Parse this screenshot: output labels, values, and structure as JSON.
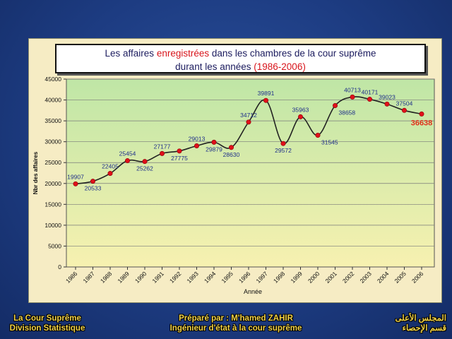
{
  "chart_data": {
    "type": "line",
    "title_part1": "Les affaires ",
    "title_highlight": "enregistrées",
    "title_part2": " dans les chambres de la cour suprême",
    "title_line2": "durant les années ",
    "title_years": "(1986-2006)",
    "xlabel": "Année",
    "ylabel": "Nbr des affaires",
    "ylim": [
      0,
      45000
    ],
    "yticks": [
      0,
      5000,
      10000,
      15000,
      20000,
      25000,
      30000,
      35000,
      40000,
      45000
    ],
    "categories": [
      "1986",
      "1987",
      "1988",
      "1989",
      "1990",
      "1991",
      "1992",
      "1993",
      "1994",
      "1995",
      "1996",
      "1997",
      "1998",
      "1999",
      "2000",
      "2001",
      "2002",
      "2003",
      "2004",
      "2005",
      "2006"
    ],
    "values": [
      19907,
      20533,
      22405,
      25454,
      25262,
      27177,
      27775,
      29013,
      29879,
      28630,
      34712,
      39891,
      29572,
      35963,
      31545,
      38658,
      40713,
      40171,
      39023,
      37504,
      36638
    ],
    "label_positions": [
      "above",
      "below",
      "above",
      "above",
      "below",
      "above",
      "below",
      "above",
      "below",
      "below",
      "above",
      "above",
      "below",
      "above",
      "right",
      "right",
      "above",
      "above",
      "above",
      "above",
      "below"
    ],
    "highlight_last": true,
    "grid": true,
    "legend": "none",
    "colors": {
      "point": "#e0101a",
      "line": "#222222",
      "label": "#1f2f8a",
      "last_label": "#e0301a",
      "panel_top": "#bfe6a6",
      "panel_bottom": "#f7f1b0"
    }
  },
  "footer": {
    "left_line1": "La Cour Suprême",
    "left_line2": "Division Statistique",
    "center_line1": "Préparé par : M'hamed ZAHIR",
    "center_line2": "Ingénieur d'état à la cour suprême",
    "right_line1": "المجلس الأعلى",
    "right_line2": "قسم الإحصاء"
  }
}
